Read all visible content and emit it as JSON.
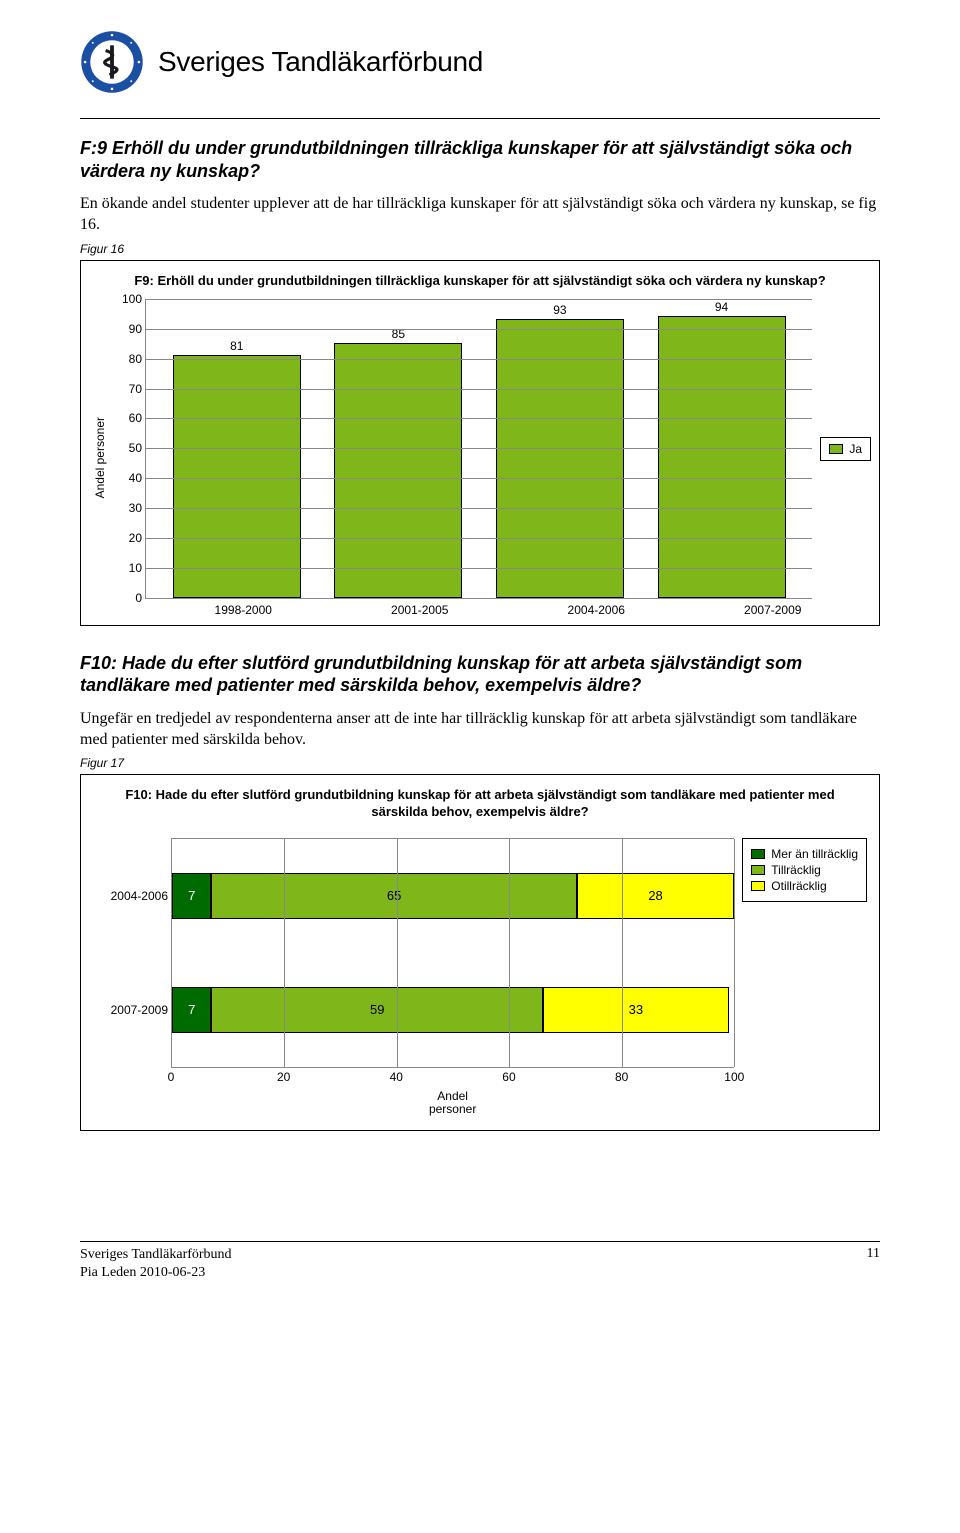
{
  "header": {
    "org_name": "Sveriges Tandläkarförbund",
    "logo": {
      "ring_color": "#1a4fa3",
      "inner_color": "#ffffff",
      "ring_text_color": "#ffffff"
    }
  },
  "section1": {
    "heading": "F:9 Erhöll du under grundutbildningen tillräckliga kunskaper för att självständigt söka och värdera ny kunskap?",
    "paragraph": "En ökande andel studenter upplever att de har tillräckliga kunskaper för att självständigt söka och värdera ny kunskap, se fig 16.",
    "figure_label": "Figur 16"
  },
  "chart1": {
    "type": "bar",
    "title": "F9: Erhöll du under grundutbildningen tillräckliga kunskaper för att självständigt söka och värdera ny kunskap?",
    "y_label": "Andel personer",
    "categories": [
      "1998-2000",
      "2001-2005",
      "2004-2006",
      "2007-2009"
    ],
    "values": [
      81,
      85,
      93,
      94
    ],
    "bar_color": "#7fb61a",
    "bar_border": "#000000",
    "y_ticks": [
      0,
      10,
      20,
      30,
      40,
      50,
      60,
      70,
      80,
      90,
      100
    ],
    "y_max": 100,
    "grid_color": "#888888",
    "legend": {
      "label": "Ja",
      "color": "#7fb61a"
    }
  },
  "section2": {
    "heading": "F10: Hade du efter slutförd grundutbildning kunskap för att arbeta självständigt som tandläkare med patienter med särskilda behov, exempelvis äldre?",
    "paragraph": "Ungefär en tredjedel av respondenterna anser att de inte har tillräcklig kunskap för att arbeta självständigt som tandläkare med patienter med särskilda behov.",
    "figure_label": "Figur 17"
  },
  "chart2": {
    "type": "stacked-horizontal-bar",
    "title": "F10: Hade du efter slutförd grundutbildning kunskap för att arbeta självständigt som tandläkare med patienter med särskilda behov, exempelvis äldre?",
    "x_label_line1": "Andel",
    "x_label_line2": "personer",
    "x_ticks": [
      0,
      20,
      40,
      60,
      80,
      100
    ],
    "x_max": 100,
    "grid_color": "#888888",
    "rows": [
      {
        "label": "2004-2006",
        "segments": [
          {
            "value": 7,
            "color": "#006b00",
            "text_color": "#ffffff"
          },
          {
            "value": 65,
            "color": "#7fb61a",
            "text_color": "#000000"
          },
          {
            "value": 28,
            "color": "#ffff00",
            "text_color": "#000000"
          }
        ]
      },
      {
        "label": "2007-2009",
        "segments": [
          {
            "value": 7,
            "color": "#006b00",
            "text_color": "#ffffff"
          },
          {
            "value": 59,
            "color": "#7fb61a",
            "text_color": "#000000"
          },
          {
            "value": 33,
            "color": "#ffff00",
            "text_color": "#000000"
          }
        ]
      }
    ],
    "legend": [
      {
        "label": "Mer än tillräcklig",
        "color": "#006b00"
      },
      {
        "label": "Tillräcklig",
        "color": "#7fb61a"
      },
      {
        "label": "Otillräcklig",
        "color": "#ffff00"
      }
    ]
  },
  "footer": {
    "line1": "Sveriges Tandläkarförbund",
    "line2": "Pia Leden 2010-06-23",
    "page": "11"
  }
}
